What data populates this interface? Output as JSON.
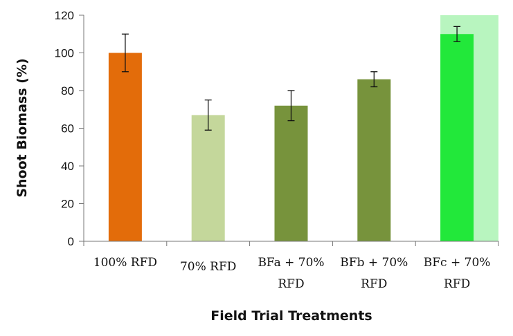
{
  "chart_data": {
    "type": "bar",
    "xlabel": "Field Trial Treatments",
    "ylabel": "Shoot Biomass (%)",
    "ylim": [
      0,
      120
    ],
    "yticks": [
      "0",
      "20",
      "40",
      "60",
      "80",
      "100",
      "120"
    ],
    "categories": [
      [
        "100% RFD"
      ],
      [
        "70% RFD"
      ],
      [
        "BFa + 70%",
        "RFD"
      ],
      [
        "BFb + 70%",
        "RFD"
      ],
      [
        "BFc + 70%",
        "RFD"
      ]
    ],
    "values": [
      100,
      67,
      72,
      86,
      110
    ],
    "error": [
      10,
      8,
      8,
      4,
      4
    ],
    "colors": [
      "#e36c0a",
      "#c4d79b",
      "#77933c",
      "#77933c",
      "#22e83a"
    ],
    "highlight": {
      "category_index": 4,
      "color": "#b8f5bf"
    },
    "grid": false
  }
}
